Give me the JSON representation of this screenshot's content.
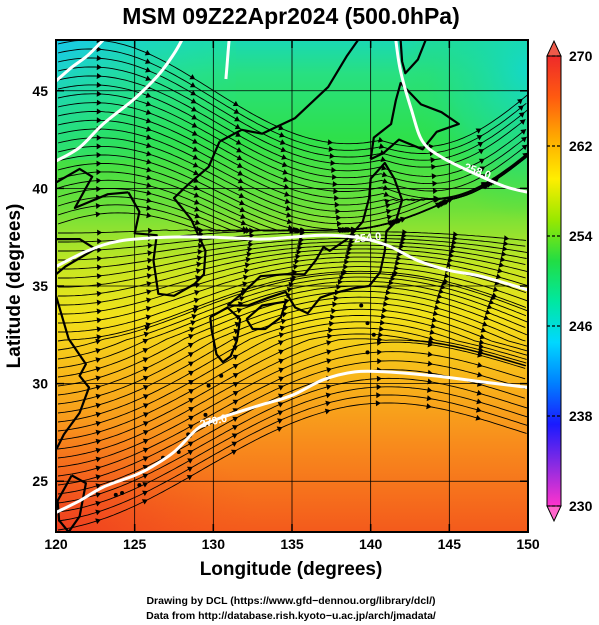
{
  "title": "MSM 09Z22Apr2024 (500.0hPa)",
  "x_axis": {
    "label": "Longitude (degrees)",
    "range": [
      120,
      150
    ],
    "ticks": [
      "120",
      "125",
      "130",
      "135",
      "140",
      "145",
      "150"
    ]
  },
  "y_axis": {
    "label": "Latitude  (degrees)",
    "range": [
      22.4,
      47.6
    ],
    "ticks": [
      "25",
      "30",
      "35",
      "40",
      "45"
    ]
  },
  "colorbar": {
    "range": [
      230,
      270
    ],
    "ticks": [
      "230",
      "238",
      "246",
      "254",
      "262",
      "270"
    ],
    "colors": [
      "#ff33cc",
      "#8a2be2",
      "#1a1aff",
      "#0080ff",
      "#00d8ff",
      "#00e8a0",
      "#22dd44",
      "#99e800",
      "#ffee00",
      "#ffaa00",
      "#ff5a10",
      "#ee2a2a"
    ]
  },
  "contours": [
    {
      "label": "270.0",
      "points": [
        [
          120,
          23.4
        ],
        [
          121.5,
          24.0
        ],
        [
          123,
          24.7
        ],
        [
          125,
          25.3
        ],
        [
          126,
          25.7
        ],
        [
          127.5,
          26.5
        ],
        [
          129,
          27.7
        ],
        [
          130,
          28.1
        ],
        [
          131,
          28.4
        ],
        [
          133,
          28.9
        ],
        [
          135,
          29.4
        ],
        [
          137,
          30.2
        ],
        [
          139,
          30.6
        ],
        [
          141,
          30.6
        ],
        [
          144,
          30.4
        ],
        [
          147,
          30.1
        ],
        [
          150,
          29.8
        ]
      ]
    },
    {
      "label": "254.0",
      "points": [
        [
          120,
          36.0
        ],
        [
          122,
          36.8
        ],
        [
          124,
          37.3
        ],
        [
          127,
          37.5
        ],
        [
          130,
          37.5
        ],
        [
          133,
          37.4
        ],
        [
          135,
          37.5
        ],
        [
          137,
          37.6
        ],
        [
          139,
          37.5
        ],
        [
          141,
          37.1
        ],
        [
          143,
          36.3
        ],
        [
          145,
          35.8
        ],
        [
          147,
          35.5
        ],
        [
          150,
          34.8
        ]
      ]
    },
    {
      "label": "258.0",
      "points": [
        [
          120,
          41.4
        ],
        [
          121.5,
          42.1
        ],
        [
          123,
          43.3
        ],
        [
          125,
          44.6
        ],
        [
          126.5,
          45.8
        ],
        [
          127.5,
          46.9
        ],
        [
          128,
          47.6
        ]
      ]
    },
    {
      "label": "258.0",
      "points": [
        [
          120,
          45.5
        ],
        [
          121,
          46.2
        ],
        [
          122,
          46.8
        ],
        [
          123,
          47.6
        ]
      ]
    },
    {
      "label": "262.0",
      "points": [
        [
          131.0,
          47.6
        ],
        [
          130.9,
          46.6
        ],
        [
          130.8,
          45.6
        ]
      ]
    },
    {
      "label": "258.0",
      "points": [
        [
          141.6,
          47.6
        ],
        [
          141.9,
          46.0
        ],
        [
          142.6,
          44.0
        ],
        [
          143.3,
          42.4
        ],
        [
          144.5,
          41.6
        ],
        [
          146.5,
          40.8
        ],
        [
          148.5,
          40.1
        ],
        [
          150,
          39.8
        ]
      ]
    }
  ],
  "data_source": {
    "line1": "Drawing by DCL (https://www.gfd−dennou.org/library/dcl/)",
    "line2": "Data from http://database.rish.kyoto−u.ac.jp/arch/jmadata/"
  }
}
